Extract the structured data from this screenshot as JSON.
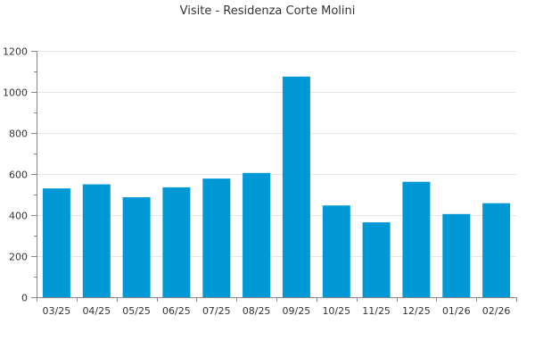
{
  "chart_data": {
    "type": "bar",
    "title": "Visite - Residenza Corte Molini",
    "categories": [
      "03/25",
      "04/25",
      "05/25",
      "06/25",
      "07/25",
      "08/25",
      "09/25",
      "10/25",
      "11/25",
      "12/25",
      "01/26",
      "02/26"
    ],
    "values": [
      530,
      550,
      487,
      535,
      578,
      605,
      1075,
      447,
      365,
      562,
      405,
      458
    ],
    "xlabel": "",
    "ylabel": "",
    "ylim": [
      0,
      1200
    ],
    "yticks": [
      0,
      200,
      400,
      600,
      800,
      1000,
      1200
    ],
    "ytick_labels": [
      "0",
      "200",
      "400",
      "600",
      "800",
      "1000",
      "1200"
    ],
    "grid": true,
    "legend": "none",
    "bar_color": "#0099d6"
  }
}
